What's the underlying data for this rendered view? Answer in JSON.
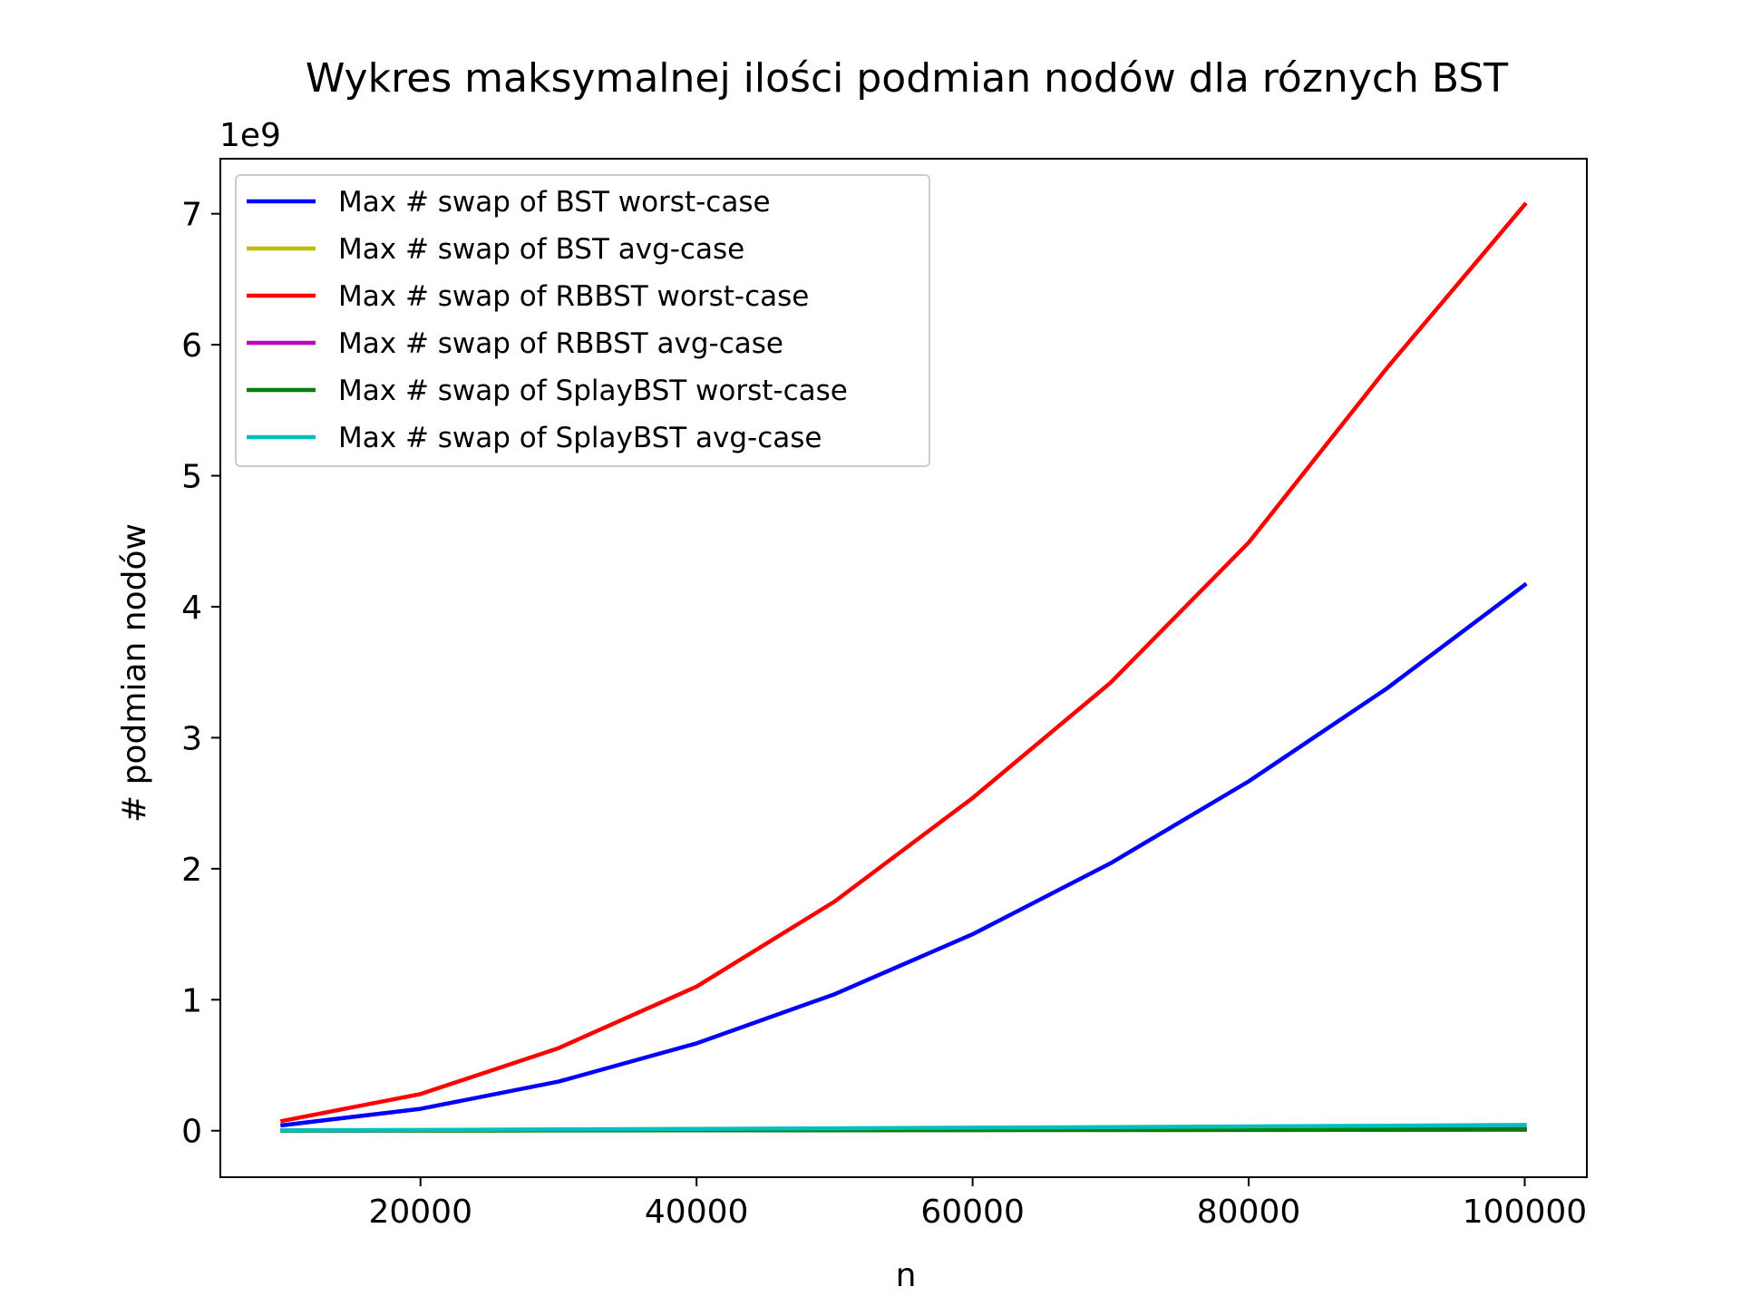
{
  "chart_data": {
    "type": "line",
    "title": "Wykres maksymalnej ilości podmian nodów dla róznych BST",
    "xlabel": "n",
    "ylabel": "# podmian nodów",
    "y_offset_label": "1e9",
    "y_scale": 1000000000,
    "xlim": [
      5500,
      104500
    ],
    "ylim": [
      -0.355,
      7.42
    ],
    "xticks": [
      20000,
      40000,
      60000,
      80000,
      100000
    ],
    "xtick_labels": [
      "20000",
      "40000",
      "60000",
      "80000",
      "100000"
    ],
    "yticks": [
      0,
      1,
      2,
      3,
      4,
      5,
      6,
      7
    ],
    "ytick_labels": [
      "0",
      "1",
      "2",
      "3",
      "4",
      "5",
      "6",
      "7"
    ],
    "grid": false,
    "legend_position": "upper-left",
    "x": [
      10000,
      20000,
      30000,
      40000,
      50000,
      60000,
      70000,
      80000,
      90000,
      100000
    ],
    "series": [
      {
        "name": "Max # swap of BST worst-case",
        "color": "#0000ff",
        "values": [
          0.042,
          0.167,
          0.375,
          0.667,
          1.042,
          1.5,
          2.042,
          2.667,
          3.375,
          4.167
        ]
      },
      {
        "name": "Max # swap of BST avg-case",
        "color": "#bfbf00",
        "values": [
          0.0008,
          0.0018,
          0.0029,
          0.004,
          0.0052,
          0.0064,
          0.0077,
          0.009,
          0.0103,
          0.0116
        ]
      },
      {
        "name": "Max # swap of RBBST worst-case",
        "color": "#ff0000",
        "values": [
          0.075,
          0.28,
          0.63,
          1.1,
          1.75,
          2.54,
          3.42,
          4.49,
          5.82,
          7.07
        ]
      },
      {
        "name": "Max # swap of RBBST avg-case",
        "color": "#bf00bf",
        "values": [
          0.0009,
          0.002,
          0.0031,
          0.0043,
          0.0056,
          0.0069,
          0.0082,
          0.0096,
          0.011,
          0.0124
        ]
      },
      {
        "name": "Max # swap of SplayBST worst-case",
        "color": "#008000",
        "values": [
          0.0006,
          0.0013,
          0.002,
          0.0028,
          0.0036,
          0.0044,
          0.0052,
          0.006,
          0.0068,
          0.0076
        ]
      },
      {
        "name": "Max # swap of SplayBST avg-case",
        "color": "#00bfbf",
        "values": [
          0.002,
          0.006,
          0.01,
          0.014,
          0.018,
          0.023,
          0.028,
          0.033,
          0.038,
          0.044
        ]
      }
    ]
  }
}
